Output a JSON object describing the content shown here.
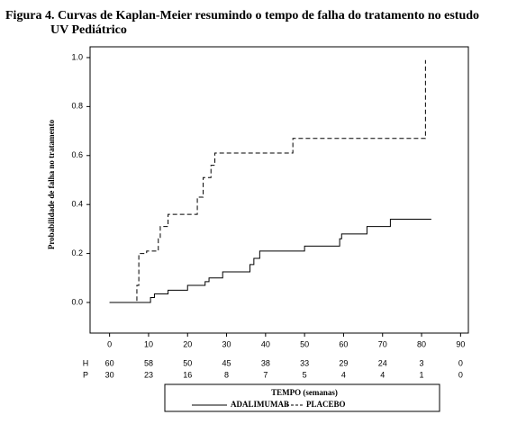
{
  "chart_data": {
    "type": "step",
    "title": [
      "Figura 4. Curvas de Kaplan-Meier resumindo o tempo de falha do tratamento no estudo",
      "UV Pediátrico"
    ],
    "y_label": "Probabilidade de falha no tratamento",
    "x_label": "TEMPO (semanas)",
    "xlim": [
      -5,
      92
    ],
    "ylim": [
      -0.125,
      1.044
    ],
    "xticks": [
      0,
      10,
      20,
      30,
      40,
      50,
      60,
      70,
      80,
      90
    ],
    "yticks": [
      {
        "value": 0,
        "label": "0.0"
      },
      0.2,
      0.4,
      0.6,
      0.8,
      {
        "value": 1,
        "label": "1.0"
      }
    ],
    "series": [
      {
        "name": "ADALIMUMAB",
        "color": "#000000",
        "dash": "none",
        "x": [
          0,
          10.5,
          11.5,
          15,
          20,
          24.5,
          25.5,
          29,
          36,
          37,
          38.5,
          50,
          59,
          59.5,
          66,
          72,
          82.5
        ],
        "values": [
          0,
          0.02,
          0.035,
          0.05,
          0.07,
          0.085,
          0.1,
          0.125,
          0.155,
          0.18,
          0.21,
          0.23,
          0.26,
          0.28,
          0.31,
          0.34,
          0.34
        ]
      },
      {
        "name": "PLACEBO",
        "color": "#000000",
        "dash": "5,3",
        "x": [
          0,
          7,
          7.5,
          9.5,
          12.5,
          13,
          15,
          22.5,
          24,
          26,
          27,
          47,
          81
        ],
        "values": [
          0,
          0.07,
          0.2,
          0.21,
          0.26,
          0.31,
          0.36,
          0.43,
          0.51,
          0.56,
          0.61,
          0.67,
          0.99
        ]
      }
    ],
    "risk_table": [
      {
        "label": "H",
        "values": [
          60,
          58,
          50,
          45,
          38,
          33,
          29,
          24,
          3,
          0
        ]
      },
      {
        "label": "P",
        "values": [
          30,
          23,
          16,
          8,
          7,
          5,
          4,
          4,
          1,
          0
        ]
      }
    ]
  }
}
